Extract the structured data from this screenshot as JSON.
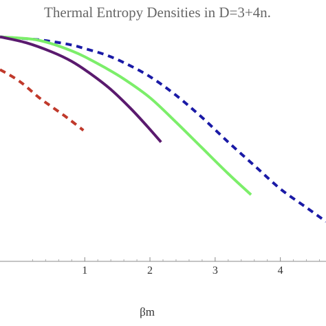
{
  "chart_data": {
    "type": "line",
    "title": "Thermal Entropy Densities in D=3+4n.",
    "xlabel": "βm",
    "ylabel": "",
    "xlim": [
      -0.3,
      4.7
    ],
    "ylim": [
      0,
      1.0
    ],
    "x_ticks": [
      "1",
      "2",
      "3",
      "4"
    ],
    "x_tick_values": [
      1,
      2,
      3,
      4
    ],
    "grid": false,
    "legend": "none",
    "series": [
      {
        "color": "#1a1aa6",
        "style": "dashed",
        "points": [
          [
            -0.3,
            0.96
          ],
          [
            0.2,
            0.95
          ],
          [
            0.5,
            0.94
          ],
          [
            0.8,
            0.925
          ],
          [
            1.0,
            0.91
          ],
          [
            1.3,
            0.885
          ],
          [
            1.6,
            0.85
          ],
          [
            2.0,
            0.79
          ],
          [
            2.4,
            0.71
          ],
          [
            2.8,
            0.615
          ],
          [
            3.2,
            0.51
          ],
          [
            3.6,
            0.41
          ],
          [
            4.0,
            0.31
          ],
          [
            4.4,
            0.23
          ],
          [
            4.7,
            0.17
          ]
        ]
      },
      {
        "color": "#7cee6a",
        "style": "solid",
        "points": [
          [
            -0.3,
            0.96
          ],
          [
            0.2,
            0.95
          ],
          [
            0.5,
            0.93
          ],
          [
            0.8,
            0.9
          ],
          [
            1.0,
            0.875
          ],
          [
            1.3,
            0.83
          ],
          [
            1.6,
            0.78
          ],
          [
            2.0,
            0.7
          ],
          [
            2.4,
            0.595
          ],
          [
            2.8,
            0.485
          ],
          [
            3.2,
            0.375
          ],
          [
            3.55,
            0.285
          ]
        ]
      },
      {
        "color": "#5a1a6e",
        "style": "solid",
        "points": [
          [
            -0.3,
            0.96
          ],
          [
            0.1,
            0.935
          ],
          [
            0.5,
            0.895
          ],
          [
            0.8,
            0.855
          ],
          [
            1.1,
            0.8
          ],
          [
            1.4,
            0.735
          ],
          [
            1.7,
            0.655
          ],
          [
            1.95,
            0.58
          ],
          [
            2.17,
            0.51
          ]
        ]
      },
      {
        "color": "#c0392b",
        "style": "dashed",
        "points": [
          [
            -0.3,
            0.82
          ],
          [
            0.0,
            0.77
          ],
          [
            0.3,
            0.7
          ],
          [
            0.5,
            0.66
          ],
          [
            0.75,
            0.61
          ],
          [
            0.98,
            0.56
          ]
        ]
      }
    ]
  }
}
